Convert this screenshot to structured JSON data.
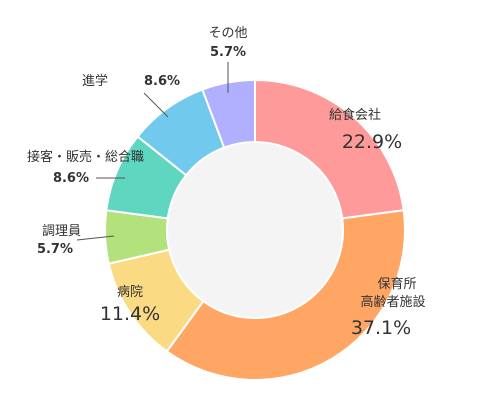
{
  "chart_data": {
    "type": "pie",
    "style": "donut",
    "title": "",
    "start_angle_deg": 0,
    "direction": "clockwise",
    "slices": [
      {
        "label": "給食会社",
        "label_lines": [
          "給食会社"
        ],
        "value": 22.9,
        "pct_text": "22.9%",
        "color": "#FF9A9A"
      },
      {
        "label": "保育所 高齢者施設",
        "label_lines": [
          "保育所",
          "高齢者施設"
        ],
        "value": 37.1,
        "pct_text": "37.1%",
        "color": "#FFA665"
      },
      {
        "label": "病院",
        "label_lines": [
          "病院"
        ],
        "value": 11.4,
        "pct_text": "11.4%",
        "color": "#FBDA84"
      },
      {
        "label": "調理員",
        "label_lines": [
          "調理員"
        ],
        "value": 5.7,
        "pct_text": "5.7%",
        "color": "#B3E27C"
      },
      {
        "label": "接客・販売・総合職",
        "label_lines": [
          "接客・販売・総合職"
        ],
        "value": 8.6,
        "pct_text": "8.6%",
        "color": "#5ED6C0"
      },
      {
        "label": "進学",
        "label_lines": [
          "進学"
        ],
        "value": 8.6,
        "pct_text": "8.6%",
        "color": "#72C9EE"
      },
      {
        "label": "その他",
        "label_lines": [
          "その他"
        ],
        "value": 5.7,
        "pct_text": "5.7%",
        "color": "#B1AFFF"
      }
    ],
    "center_color": "#F4F4F4"
  }
}
